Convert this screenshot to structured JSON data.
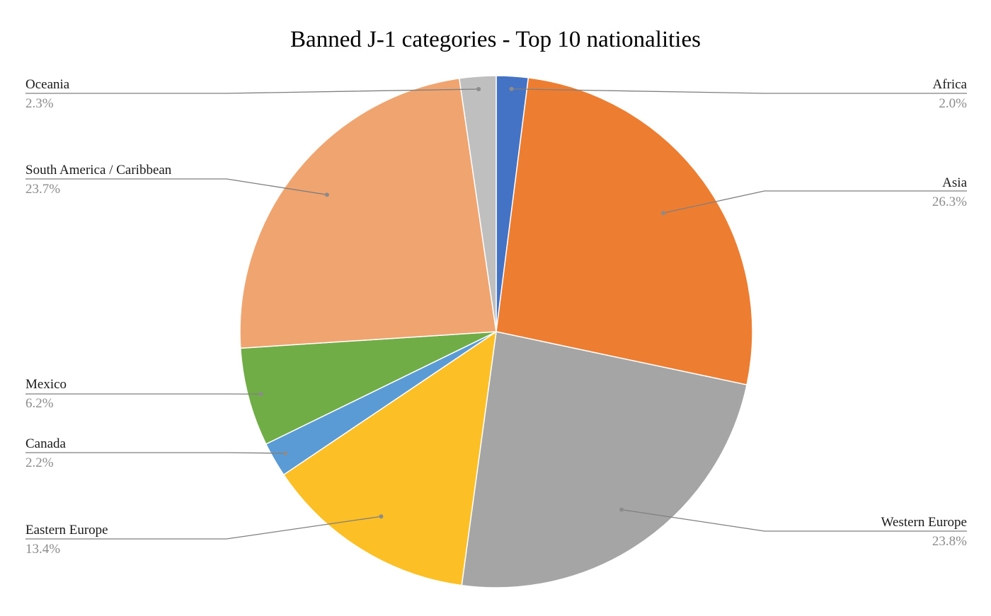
{
  "chart_data": {
    "type": "pie",
    "title": "Banned J-1 categories - Top 10 nationalities",
    "slices": [
      {
        "label": "Africa",
        "value": 2.0,
        "display": "2.0%",
        "color": "#4472c4"
      },
      {
        "label": "Asia",
        "value": 26.3,
        "display": "26.3%",
        "color": "#ed7d31"
      },
      {
        "label": "Western Europe",
        "value": 23.8,
        "display": "23.8%",
        "color": "#a5a5a5"
      },
      {
        "label": "Eastern Europe",
        "value": 13.4,
        "display": "13.4%",
        "color": "#fcbf25"
      },
      {
        "label": "Canada",
        "value": 2.2,
        "display": "2.2%",
        "color": "#5b9bd5"
      },
      {
        "label": "Mexico",
        "value": 6.2,
        "display": "6.2%",
        "color": "#70ad47"
      },
      {
        "label": "South America / Caribbean",
        "value": 23.7,
        "display": "23.7%",
        "color": "#f0a46f"
      },
      {
        "label": "Oceania",
        "value": 2.3,
        "display": "2.3%",
        "color": "#bfbfbf"
      }
    ],
    "start_angle": "12 o'clock",
    "direction": "clockwise",
    "legend": "none (leader-line labels)"
  }
}
